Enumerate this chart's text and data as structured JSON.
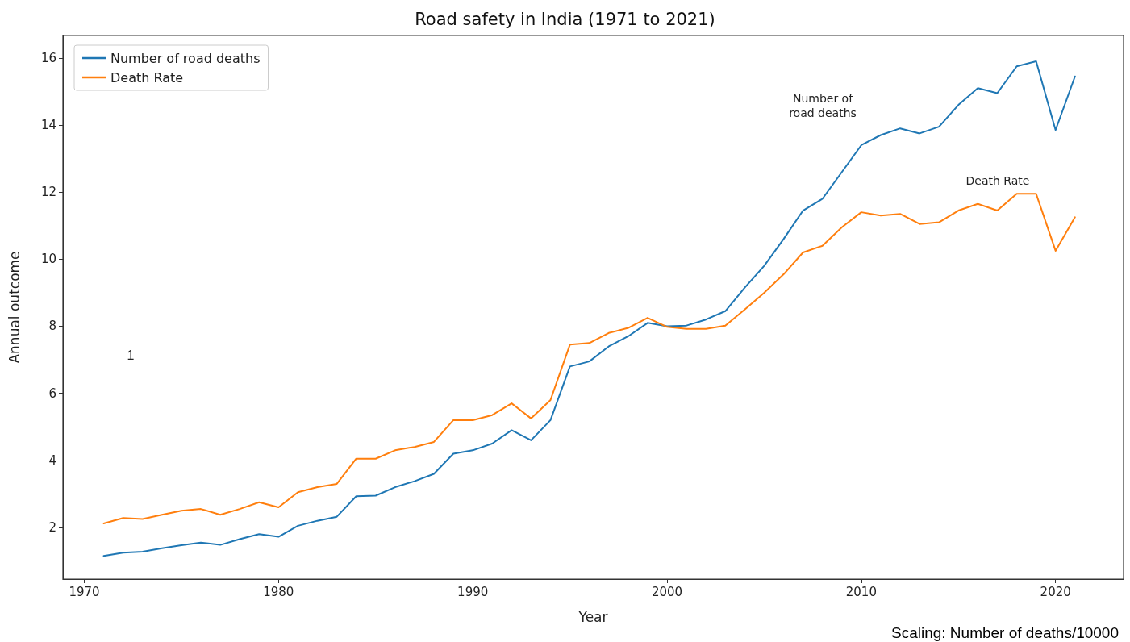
{
  "chart_data": {
    "type": "line",
    "title": "Road safety in India (1971 to 2021)",
    "xlabel": "Year",
    "ylabel": "Annual outcome",
    "x": [
      1971,
      1972,
      1973,
      1974,
      1975,
      1976,
      1977,
      1978,
      1979,
      1980,
      1981,
      1982,
      1983,
      1984,
      1985,
      1986,
      1987,
      1988,
      1989,
      1990,
      1991,
      1992,
      1993,
      1994,
      1995,
      1996,
      1997,
      1998,
      1999,
      2000,
      2001,
      2002,
      2003,
      2004,
      2005,
      2006,
      2007,
      2008,
      2009,
      2010,
      2011,
      2012,
      2013,
      2014,
      2015,
      2016,
      2017,
      2018,
      2019,
      2020,
      2021
    ],
    "series": [
      {
        "name": "Number of road deaths",
        "color": "#1f77b4",
        "values": [
          1.15,
          1.25,
          1.28,
          1.38,
          1.47,
          1.55,
          1.48,
          1.65,
          1.8,
          1.72,
          2.05,
          2.2,
          2.32,
          2.93,
          2.95,
          3.2,
          3.38,
          3.6,
          4.2,
          4.3,
          4.5,
          4.9,
          4.6,
          5.2,
          6.8,
          6.95,
          7.4,
          7.7,
          8.1,
          8.0,
          8.02,
          8.2,
          8.45,
          9.15,
          9.8,
          10.6,
          11.45,
          11.8,
          12.6,
          13.4,
          13.7,
          13.9,
          13.75,
          13.95,
          14.6,
          15.1,
          14.95,
          15.75,
          15.9,
          13.85,
          15.45
        ]
      },
      {
        "name": "Death Rate",
        "color": "#ff7f0e",
        "values": [
          2.12,
          2.28,
          2.25,
          2.38,
          2.5,
          2.55,
          2.38,
          2.55,
          2.75,
          2.6,
          3.05,
          3.2,
          3.3,
          4.05,
          4.05,
          4.3,
          4.4,
          4.55,
          5.2,
          5.2,
          5.35,
          5.7,
          5.25,
          5.8,
          7.45,
          7.5,
          7.8,
          7.95,
          8.25,
          7.98,
          7.92,
          7.92,
          8.02,
          8.5,
          9.0,
          9.55,
          10.2,
          10.4,
          10.95,
          11.4,
          11.3,
          11.35,
          11.05,
          11.1,
          11.45,
          11.65,
          11.45,
          11.95,
          11.95,
          10.25,
          11.25
        ]
      }
    ],
    "xlim": [
      1968.9,
      2023.5
    ],
    "xticks": [
      1970,
      1980,
      1990,
      2000,
      2010,
      2020
    ],
    "ylim": [
      0.46,
      16.67
    ],
    "yticks": [
      2,
      4,
      6,
      8,
      10,
      12,
      14,
      16
    ],
    "grid": false,
    "legend": "top left",
    "marker": "none",
    "line_style": "solid",
    "annotations": [
      "Number of\nroad deaths",
      "Death Rate",
      "1",
      "Scaling: Number of deaths/10000"
    ]
  }
}
